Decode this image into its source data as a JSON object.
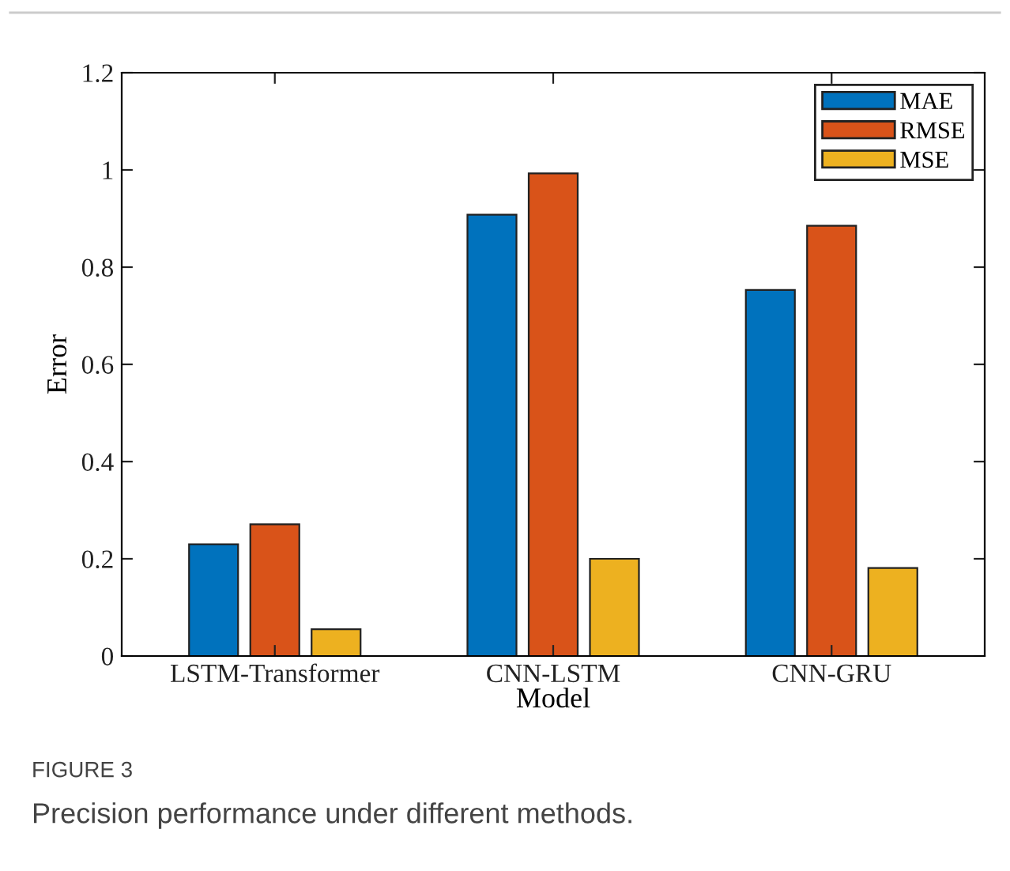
{
  "chart_data": {
    "type": "bar",
    "xlabel": "Model",
    "ylabel": "Error",
    "categories": [
      "LSTM-Transformer",
      "CNN-LSTM",
      "CNN-GRU"
    ],
    "series": [
      {
        "name": "MAE",
        "color": "#0072bd",
        "values": [
          0.23,
          0.908,
          0.753
        ]
      },
      {
        "name": "RMSE",
        "color": "#d95319",
        "values": [
          0.271,
          0.993,
          0.885
        ]
      },
      {
        "name": "MSE",
        "color": "#edb120",
        "values": [
          0.055,
          0.2,
          0.181
        ]
      }
    ],
    "ylim": [
      0,
      1.2
    ],
    "yticks": [
      0,
      0.2,
      0.4,
      0.6,
      0.8,
      1,
      1.2
    ],
    "grid": false,
    "legend": "top right",
    "annotations": [
      "FIGURE 3",
      "Precision performance under different methods."
    ]
  }
}
